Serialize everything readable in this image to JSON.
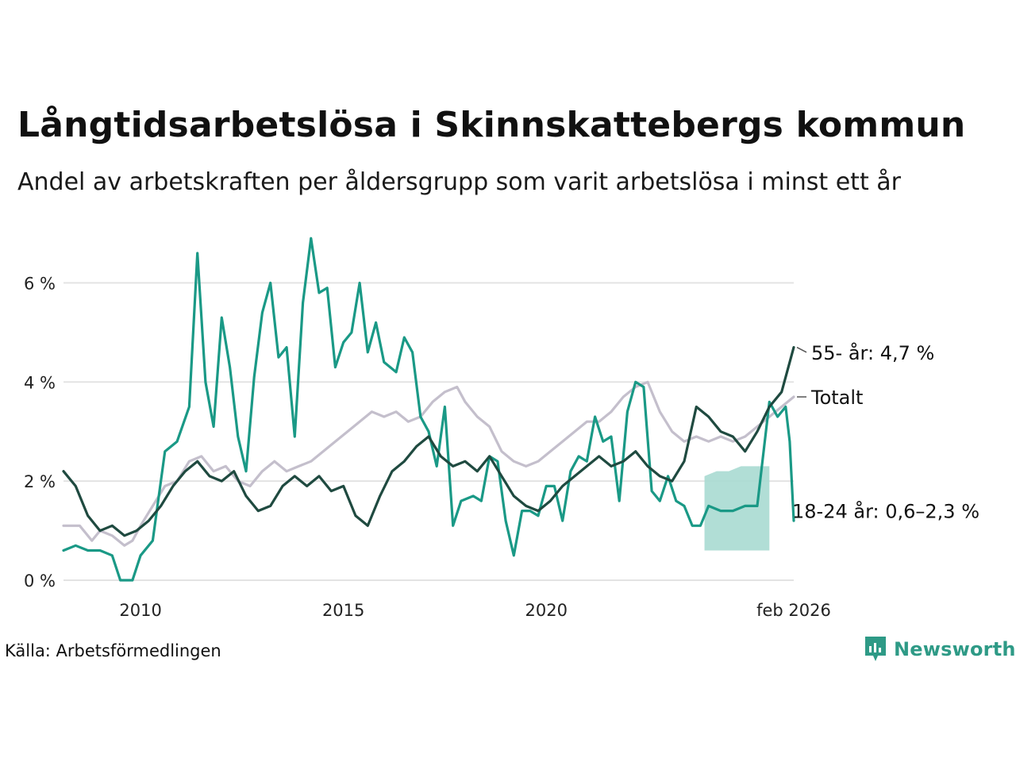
{
  "title": "Långtidsarbetslösa i Skinnskattebergs kommun",
  "subtitle": "Andel av arbetskraften per åldersgrupp som varit arbetslösa i minst ett år",
  "source": "Källa: Arbetsförmedlingen",
  "brand": "Newsworthy",
  "colors": {
    "total": "#c4bfcc",
    "age55": "#1f4a40",
    "age18_24": "#1a9986",
    "band": "#a8dad2",
    "grid": "#e3e3e3",
    "brand": "#2e9a86"
  },
  "chart_data": {
    "type": "line",
    "ylim": [
      0,
      7
    ],
    "xlim": [
      2008.1,
      2026.1
    ],
    "yticks": [
      0,
      2,
      4,
      6
    ],
    "ytick_labels": [
      "0 %",
      "2 %",
      "4 %",
      "6 %"
    ],
    "xticks": [
      2010,
      2015,
      2020,
      2026.1
    ],
    "xtick_labels": [
      "2010",
      "2015",
      "2020",
      "feb 2026"
    ],
    "series": [
      {
        "key": "total",
        "name": "Totalt",
        "label": "Totalt",
        "points": [
          [
            2008.1,
            1.1
          ],
          [
            2008.5,
            1.1
          ],
          [
            2008.8,
            0.8
          ],
          [
            2009.0,
            1.0
          ],
          [
            2009.3,
            0.9
          ],
          [
            2009.6,
            0.7
          ],
          [
            2009.8,
            0.8
          ],
          [
            2010.0,
            1.1
          ],
          [
            2010.3,
            1.5
          ],
          [
            2010.6,
            1.9
          ],
          [
            2010.9,
            2.0
          ],
          [
            2011.2,
            2.4
          ],
          [
            2011.5,
            2.5
          ],
          [
            2011.8,
            2.2
          ],
          [
            2012.1,
            2.3
          ],
          [
            2012.4,
            2.0
          ],
          [
            2012.7,
            1.9
          ],
          [
            2013.0,
            2.2
          ],
          [
            2013.3,
            2.4
          ],
          [
            2013.6,
            2.2
          ],
          [
            2013.9,
            2.3
          ],
          [
            2014.2,
            2.4
          ],
          [
            2014.5,
            2.6
          ],
          [
            2014.8,
            2.8
          ],
          [
            2015.1,
            3.0
          ],
          [
            2015.4,
            3.2
          ],
          [
            2015.7,
            3.4
          ],
          [
            2016.0,
            3.3
          ],
          [
            2016.3,
            3.4
          ],
          [
            2016.6,
            3.2
          ],
          [
            2016.9,
            3.3
          ],
          [
            2017.2,
            3.6
          ],
          [
            2017.5,
            3.8
          ],
          [
            2017.8,
            3.9
          ],
          [
            2018.0,
            3.6
          ],
          [
            2018.3,
            3.3
          ],
          [
            2018.6,
            3.1
          ],
          [
            2018.9,
            2.6
          ],
          [
            2019.2,
            2.4
          ],
          [
            2019.5,
            2.3
          ],
          [
            2019.8,
            2.4
          ],
          [
            2020.1,
            2.6
          ],
          [
            2020.4,
            2.8
          ],
          [
            2020.7,
            3.0
          ],
          [
            2021.0,
            3.2
          ],
          [
            2021.3,
            3.2
          ],
          [
            2021.6,
            3.4
          ],
          [
            2021.9,
            3.7
          ],
          [
            2022.2,
            3.9
          ],
          [
            2022.5,
            4.0
          ],
          [
            2022.8,
            3.4
          ],
          [
            2023.1,
            3.0
          ],
          [
            2023.4,
            2.8
          ],
          [
            2023.7,
            2.9
          ],
          [
            2024.0,
            2.8
          ],
          [
            2024.3,
            2.9
          ],
          [
            2024.6,
            2.8
          ],
          [
            2024.9,
            2.9
          ],
          [
            2025.2,
            3.1
          ],
          [
            2025.5,
            3.3
          ],
          [
            2025.8,
            3.5
          ],
          [
            2026.1,
            3.7
          ]
        ]
      },
      {
        "key": "age55",
        "name": "55- år",
        "label": "55- år: 4,7 %",
        "points": [
          [
            2008.1,
            2.2
          ],
          [
            2008.4,
            1.9
          ],
          [
            2008.7,
            1.3
          ],
          [
            2009.0,
            1.0
          ],
          [
            2009.3,
            1.1
          ],
          [
            2009.6,
            0.9
          ],
          [
            2009.9,
            1.0
          ],
          [
            2010.2,
            1.2
          ],
          [
            2010.5,
            1.5
          ],
          [
            2010.8,
            1.9
          ],
          [
            2011.1,
            2.2
          ],
          [
            2011.4,
            2.4
          ],
          [
            2011.7,
            2.1
          ],
          [
            2012.0,
            2.0
          ],
          [
            2012.3,
            2.2
          ],
          [
            2012.6,
            1.7
          ],
          [
            2012.9,
            1.4
          ],
          [
            2013.2,
            1.5
          ],
          [
            2013.5,
            1.9
          ],
          [
            2013.8,
            2.1
          ],
          [
            2014.1,
            1.9
          ],
          [
            2014.4,
            2.1
          ],
          [
            2014.7,
            1.8
          ],
          [
            2015.0,
            1.9
          ],
          [
            2015.3,
            1.3
          ],
          [
            2015.6,
            1.1
          ],
          [
            2015.9,
            1.7
          ],
          [
            2016.2,
            2.2
          ],
          [
            2016.5,
            2.4
          ],
          [
            2016.8,
            2.7
          ],
          [
            2017.1,
            2.9
          ],
          [
            2017.4,
            2.5
          ],
          [
            2017.7,
            2.3
          ],
          [
            2018.0,
            2.4
          ],
          [
            2018.3,
            2.2
          ],
          [
            2018.6,
            2.5
          ],
          [
            2018.9,
            2.1
          ],
          [
            2019.2,
            1.7
          ],
          [
            2019.5,
            1.5
          ],
          [
            2019.8,
            1.4
          ],
          [
            2020.1,
            1.6
          ],
          [
            2020.4,
            1.9
          ],
          [
            2020.7,
            2.1
          ],
          [
            2021.0,
            2.3
          ],
          [
            2021.3,
            2.5
          ],
          [
            2021.6,
            2.3
          ],
          [
            2021.9,
            2.4
          ],
          [
            2022.2,
            2.6
          ],
          [
            2022.5,
            2.3
          ],
          [
            2022.8,
            2.1
          ],
          [
            2023.1,
            2.0
          ],
          [
            2023.4,
            2.4
          ],
          [
            2023.7,
            3.5
          ],
          [
            2024.0,
            3.3
          ],
          [
            2024.3,
            3.0
          ],
          [
            2024.6,
            2.9
          ],
          [
            2024.9,
            2.6
          ],
          [
            2025.2,
            3.0
          ],
          [
            2025.5,
            3.5
          ],
          [
            2025.8,
            3.8
          ],
          [
            2026.1,
            4.7
          ]
        ]
      },
      {
        "key": "age18_24",
        "name": "18-24 år",
        "label": "18-24 år: 0,6–2,3 %",
        "points": [
          [
            2008.1,
            0.6
          ],
          [
            2008.4,
            0.7
          ],
          [
            2008.7,
            0.6
          ],
          [
            2009.0,
            0.6
          ],
          [
            2009.3,
            0.5
          ],
          [
            2009.5,
            0.0
          ],
          [
            2009.8,
            0.0
          ],
          [
            2010.0,
            0.5
          ],
          [
            2010.3,
            0.8
          ],
          [
            2010.6,
            2.6
          ],
          [
            2010.9,
            2.8
          ],
          [
            2011.2,
            3.5
          ],
          [
            2011.4,
            6.6
          ],
          [
            2011.6,
            4.0
          ],
          [
            2011.8,
            3.1
          ],
          [
            2012.0,
            5.3
          ],
          [
            2012.2,
            4.3
          ],
          [
            2012.4,
            2.9
          ],
          [
            2012.6,
            2.2
          ],
          [
            2012.8,
            4.1
          ],
          [
            2013.0,
            5.4
          ],
          [
            2013.2,
            6.0
          ],
          [
            2013.4,
            4.5
          ],
          [
            2013.6,
            4.7
          ],
          [
            2013.8,
            2.9
          ],
          [
            2014.0,
            5.6
          ],
          [
            2014.2,
            6.9
          ],
          [
            2014.4,
            5.8
          ],
          [
            2014.6,
            5.9
          ],
          [
            2014.8,
            4.3
          ],
          [
            2015.0,
            4.8
          ],
          [
            2015.2,
            5.0
          ],
          [
            2015.4,
            6.0
          ],
          [
            2015.6,
            4.6
          ],
          [
            2015.8,
            5.2
          ],
          [
            2016.0,
            4.4
          ],
          [
            2016.3,
            4.2
          ],
          [
            2016.5,
            4.9
          ],
          [
            2016.7,
            4.6
          ],
          [
            2016.9,
            3.3
          ],
          [
            2017.1,
            3.0
          ],
          [
            2017.3,
            2.3
          ],
          [
            2017.5,
            3.5
          ],
          [
            2017.7,
            1.1
          ],
          [
            2017.9,
            1.6
          ],
          [
            2018.2,
            1.7
          ],
          [
            2018.4,
            1.6
          ],
          [
            2018.6,
            2.5
          ],
          [
            2018.8,
            2.4
          ],
          [
            2019.0,
            1.2
          ],
          [
            2019.2,
            0.5
          ],
          [
            2019.4,
            1.4
          ],
          [
            2019.6,
            1.4
          ],
          [
            2019.8,
            1.3
          ],
          [
            2020.0,
            1.9
          ],
          [
            2020.2,
            1.9
          ],
          [
            2020.4,
            1.2
          ],
          [
            2020.6,
            2.2
          ],
          [
            2020.8,
            2.5
          ],
          [
            2021.0,
            2.4
          ],
          [
            2021.2,
            3.3
          ],
          [
            2021.4,
            2.8
          ],
          [
            2021.6,
            2.9
          ],
          [
            2021.8,
            1.6
          ],
          [
            2022.0,
            3.4
          ],
          [
            2022.2,
            4.0
          ],
          [
            2022.4,
            3.9
          ],
          [
            2022.6,
            1.8
          ],
          [
            2022.8,
            1.6
          ],
          [
            2023.0,
            2.1
          ],
          [
            2023.2,
            1.6
          ],
          [
            2023.4,
            1.5
          ],
          [
            2023.6,
            1.1
          ],
          [
            2023.8,
            1.1
          ],
          [
            2024.0,
            1.5
          ],
          [
            2024.3,
            1.4
          ],
          [
            2024.6,
            1.4
          ],
          [
            2024.9,
            1.5
          ],
          [
            2025.2,
            1.5
          ],
          [
            2025.5,
            3.6
          ],
          [
            2025.7,
            3.3
          ],
          [
            2025.9,
            3.5
          ],
          [
            2026.0,
            2.8
          ],
          [
            2026.1,
            1.2
          ]
        ],
        "band": [
          [
            2023.9,
            0.6,
            2.1
          ],
          [
            2024.2,
            0.6,
            2.2
          ],
          [
            2024.5,
            0.6,
            2.2
          ],
          [
            2024.8,
            0.6,
            2.3
          ],
          [
            2025.1,
            0.6,
            2.3
          ],
          [
            2025.3,
            0.6,
            2.3
          ],
          [
            2025.5,
            0.6,
            2.3
          ]
        ]
      }
    ]
  }
}
